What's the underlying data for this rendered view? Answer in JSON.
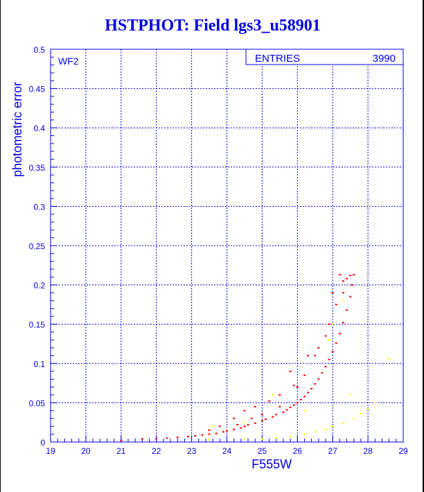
{
  "chart_data": {
    "type": "scatter",
    "title": "HSTPHOT: Field lgs3_u58901",
    "xlabel": "F555W",
    "ylabel": "photometric error",
    "xlim": [
      19,
      29
    ],
    "ylim": [
      0,
      0.5
    ],
    "xticks": [
      "19",
      "20",
      "21",
      "22",
      "23",
      "24",
      "25",
      "26",
      "27",
      "28",
      "29"
    ],
    "yticks": [
      "0",
      "0.05",
      "0.1",
      "0.15",
      "0.2",
      "0.25",
      "0.3",
      "0.35",
      "0.4",
      "0.45",
      "0.5"
    ],
    "grid": true,
    "label": "WF2",
    "stats": {
      "label": "ENTRIES",
      "value": "3990"
    },
    "colors": {
      "axis": "#0000e0",
      "main": "#ff0000",
      "secondary": "#ffff00"
    },
    "series": [
      {
        "name": "main",
        "color": "#ff0000",
        "points": [
          [
            21.0,
            0.002
          ],
          [
            21.6,
            0.004
          ],
          [
            22.0,
            0.004
          ],
          [
            22.3,
            0.005
          ],
          [
            22.6,
            0.006
          ],
          [
            22.9,
            0.007
          ],
          [
            23.1,
            0.008
          ],
          [
            23.3,
            0.009
          ],
          [
            23.5,
            0.01
          ],
          [
            23.7,
            0.011
          ],
          [
            23.9,
            0.013
          ],
          [
            24.0,
            0.014
          ],
          [
            24.2,
            0.016
          ],
          [
            24.4,
            0.018
          ],
          [
            24.5,
            0.02
          ],
          [
            24.6,
            0.022
          ],
          [
            24.8,
            0.024
          ],
          [
            25.0,
            0.027
          ],
          [
            25.1,
            0.029
          ],
          [
            25.3,
            0.032
          ],
          [
            25.4,
            0.035
          ],
          [
            25.6,
            0.038
          ],
          [
            25.7,
            0.041
          ],
          [
            25.8,
            0.044
          ],
          [
            25.9,
            0.047
          ],
          [
            26.0,
            0.05
          ],
          [
            26.1,
            0.054
          ],
          [
            26.2,
            0.058
          ],
          [
            26.3,
            0.063
          ],
          [
            26.4,
            0.068
          ],
          [
            26.5,
            0.074
          ],
          [
            26.6,
            0.08
          ],
          [
            26.7,
            0.088
          ],
          [
            26.8,
            0.096
          ],
          [
            26.9,
            0.105
          ],
          [
            27.0,
            0.115
          ],
          [
            27.1,
            0.126
          ],
          [
            27.2,
            0.138
          ],
          [
            27.3,
            0.152
          ],
          [
            27.4,
            0.168
          ],
          [
            27.5,
            0.185
          ],
          [
            27.55,
            0.2
          ],
          [
            27.6,
            0.213
          ],
          [
            27.2,
            0.213
          ],
          [
            27.3,
            0.205
          ],
          [
            27.0,
            0.19
          ],
          [
            27.1,
            0.175
          ],
          [
            26.8,
            0.135
          ],
          [
            26.5,
            0.11
          ],
          [
            26.2,
            0.085
          ],
          [
            25.9,
            0.072
          ],
          [
            25.5,
            0.06
          ],
          [
            25.2,
            0.052
          ],
          [
            24.8,
            0.045
          ],
          [
            24.5,
            0.04
          ],
          [
            24.2,
            0.03
          ],
          [
            23.8,
            0.02
          ],
          [
            23.5,
            0.015
          ],
          [
            25.8,
            0.09
          ],
          [
            26.3,
            0.11
          ],
          [
            27.4,
            0.208
          ],
          [
            27.5,
            0.212
          ],
          [
            27.3,
            0.19
          ],
          [
            26.9,
            0.15
          ],
          [
            26.6,
            0.12
          ],
          [
            26.0,
            0.07
          ],
          [
            25.5,
            0.045
          ],
          [
            25.0,
            0.035
          ],
          [
            24.7,
            0.03
          ],
          [
            24.3,
            0.022
          ]
        ]
      },
      {
        "name": "secondary",
        "color": "#ffff00",
        "points": [
          [
            23.5,
            0.003
          ],
          [
            24.5,
            0.004
          ],
          [
            25.0,
            0.004
          ],
          [
            25.4,
            0.005
          ],
          [
            25.8,
            0.007
          ],
          [
            26.2,
            0.01
          ],
          [
            26.5,
            0.013
          ],
          [
            26.8,
            0.016
          ],
          [
            27.0,
            0.02
          ],
          [
            27.3,
            0.024
          ],
          [
            27.6,
            0.03
          ],
          [
            27.8,
            0.036
          ],
          [
            28.0,
            0.042
          ],
          [
            28.2,
            0.05
          ],
          [
            28.6,
            0.105
          ],
          [
            27.0,
            0.15
          ],
          [
            27.3,
            0.18
          ],
          [
            26.9,
            0.13
          ],
          [
            25.3,
            0.06
          ],
          [
            24.5,
            0.025
          ],
          [
            23.6,
            0.02
          ],
          [
            27.5,
            0.06
          ],
          [
            26.2,
            0.04
          ]
        ]
      }
    ]
  }
}
